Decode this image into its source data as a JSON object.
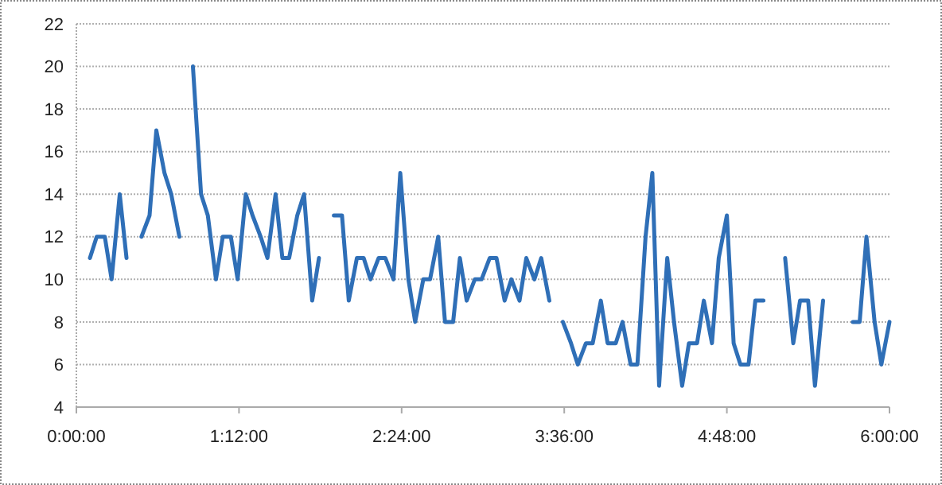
{
  "chart_data": {
    "type": "line",
    "x": [
      0.1,
      0.15,
      0.21,
      0.26,
      0.32,
      0.37,
      0.43,
      0.48,
      0.54,
      0.59,
      0.65,
      0.7,
      0.76,
      0.81,
      0.86,
      0.92,
      0.97,
      1.03,
      1.08,
      1.14,
      1.19,
      1.25,
      1.3,
      1.36,
      1.41,
      1.47,
      1.52,
      1.57,
      1.63,
      1.68,
      1.74,
      1.79,
      1.85,
      1.9,
      1.96,
      2.01,
      2.07,
      2.12,
      2.17,
      2.23,
      2.28,
      2.34,
      2.39,
      2.45,
      2.5,
      2.56,
      2.61,
      2.67,
      2.72,
      2.78,
      2.83,
      2.88,
      2.94,
      2.99,
      3.05,
      3.1,
      3.16,
      3.21,
      3.27,
      3.32,
      3.38,
      3.43,
      3.49,
      3.54,
      3.59,
      3.65,
      3.7,
      3.76,
      3.81,
      3.87,
      3.92,
      3.98,
      4.03,
      4.09,
      4.14,
      4.2,
      4.25,
      4.3,
      4.36,
      4.41,
      4.47,
      4.52,
      4.58,
      4.63,
      4.69,
      4.74,
      4.8,
      4.85,
      4.9,
      4.96,
      5.01,
      5.07,
      5.12,
      5.18,
      5.23,
      5.29,
      5.34,
      5.4,
      5.45,
      5.51,
      5.56,
      5.62,
      5.67,
      5.73,
      5.78,
      5.83,
      5.89,
      5.94,
      6.0
    ],
    "series": [
      {
        "color": "#2f6fb7",
        "values": [
          11,
          12,
          12,
          10,
          14,
          11,
          null,
          12,
          13,
          17,
          15,
          14,
          12,
          null,
          20,
          14,
          13,
          10,
          12,
          12,
          10,
          14,
          13,
          12,
          11,
          14,
          11,
          11,
          13,
          14,
          9,
          11,
          null,
          13,
          13,
          9,
          11,
          11,
          10,
          11,
          11,
          10,
          15,
          10,
          8,
          10,
          10,
          12,
          8,
          8,
          11,
          9,
          10,
          10,
          11,
          11,
          9,
          10,
          9,
          11,
          10,
          11,
          9,
          null,
          8,
          7,
          6,
          7,
          7,
          9,
          7,
          7,
          8,
          6,
          6,
          12,
          15,
          5,
          11,
          8,
          5,
          7,
          7,
          9,
          7,
          11,
          13,
          7,
          6,
          6,
          9,
          9,
          null,
          null,
          11,
          7,
          9,
          9,
          5,
          9,
          null,
          null,
          null,
          8,
          8,
          12,
          8,
          6,
          8
        ]
      }
    ],
    "xlim": [
      0,
      6
    ],
    "xticks": [
      {
        "value": 0,
        "label": "0:00:00"
      },
      {
        "value": 1.2,
        "label": "1:12:00"
      },
      {
        "value": 2.4,
        "label": "2:24:00"
      },
      {
        "value": 3.6,
        "label": "3:36:00"
      },
      {
        "value": 4.8,
        "label": "4:48:00"
      },
      {
        "value": 6,
        "label": "6:00:00"
      }
    ],
    "ylim": [
      4,
      22
    ],
    "yticks": [
      4,
      6,
      8,
      10,
      12,
      14,
      16,
      18,
      20,
      22
    ],
    "grid": "y",
    "marker": "none",
    "line_style": "solid"
  }
}
